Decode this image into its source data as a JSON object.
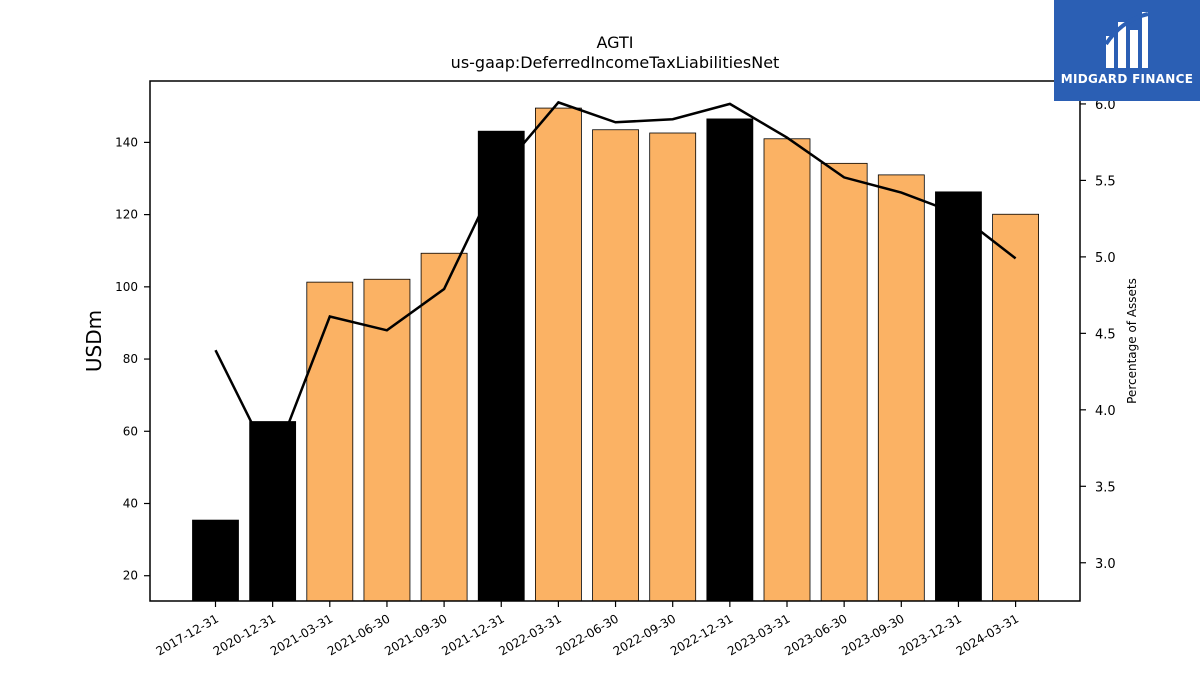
{
  "logo": {
    "text": "MIDGARD FINANCE",
    "color": "#2b5fb4"
  },
  "chart_data": {
    "type": "bar",
    "title": "AGTI",
    "subtitle": "us-gaap:DeferredIncomeTaxLiabilitiesNet",
    "ylabel": "USDm",
    "y2label": "Percentage of Assets",
    "categories": [
      "2017-12-31",
      "2020-12-31",
      "2021-03-31",
      "2021-06-30",
      "2021-09-30",
      "2021-12-31",
      "2022-03-31",
      "2022-06-30",
      "2022-09-30",
      "2022-12-31",
      "2023-03-31",
      "2023-06-30",
      "2023-09-30",
      "2023-12-31",
      "2024-03-31"
    ],
    "bar_kind": [
      "annual",
      "annual",
      "quarterly",
      "quarterly",
      "quarterly",
      "annual",
      "quarterly",
      "quarterly",
      "quarterly",
      "annual",
      "quarterly",
      "quarterly",
      "quarterly",
      "annual",
      "quarterly"
    ],
    "series": [
      {
        "name": "",
        "axis": "left",
        "type": "bar",
        "values": [
          35.4,
          62.7,
          101.3,
          102.1,
          109.3,
          143.1,
          149.5,
          143.5,
          142.6,
          146.5,
          141.0,
          134.2,
          131.0,
          126.3,
          120.1
        ]
      },
      {
        "name": "",
        "axis": "right",
        "type": "line",
        "values": [
          4.39,
          3.64,
          4.61,
          4.52,
          4.79,
          5.57,
          6.01,
          5.88,
          5.9,
          6.0,
          5.78,
          5.52,
          5.42,
          5.28,
          4.99
        ]
      }
    ],
    "ylim": [
      13,
      157
    ],
    "y2lim": [
      2.75,
      6.15
    ],
    "yticks": [
      20,
      40,
      60,
      80,
      100,
      120,
      140
    ],
    "y2ticks": [
      "3.0",
      "3.5",
      "4.0",
      "4.5",
      "5.0",
      "5.5",
      "6.0"
    ],
    "colors": {
      "annual": "#000000",
      "quarterly": "#fbb264",
      "line": "#000000"
    },
    "grid": false,
    "legend": "none"
  }
}
